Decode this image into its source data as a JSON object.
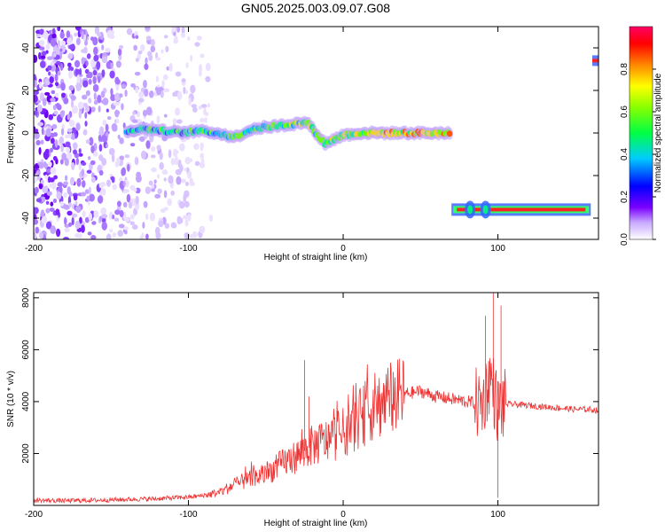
{
  "title": "GN05.2025.003.09.07.G08",
  "chart_data": [
    {
      "type": "heatmap",
      "xlabel": "Height of straight line (km)",
      "ylabel": "Frequency (Hz)",
      "xlim": [
        -200,
        165
      ],
      "ylim": [
        -50,
        50
      ],
      "xticks": [
        "-200",
        "-100",
        "0",
        "100"
      ],
      "yticks": [
        "40",
        "20",
        "0",
        "-20",
        "-40"
      ],
      "colorbar": {
        "label": "Normalized spectral amplitude",
        "range": [
          0,
          1
        ],
        "ticks": [
          "0.0",
          "0.2",
          "0.4",
          "0.6",
          "0.8"
        ],
        "colors": [
          "#ffffff",
          "#7b00ff",
          "#0000ff",
          "#00ffff",
          "#00ff00",
          "#ffff00",
          "#ff8800",
          "#ff0000",
          "#ff0066"
        ]
      },
      "traces": [
        {
          "x_range": [
            -140,
            70
          ],
          "freq": [
            1,
            2,
            1,
            0,
            1,
            0,
            -2,
            2,
            3,
            4,
            5,
            -5,
            -1,
            0,
            0,
            0,
            0,
            0,
            0
          ],
          "strength": "increasing"
        },
        {
          "x_range": [
            70,
            160
          ],
          "freq": -36,
          "strength": "strong"
        },
        {
          "x_range": [
            161,
            165
          ],
          "freq": 34,
          "strength": "strong"
        }
      ],
      "noise_region": {
        "x_range": [
          -200,
          -85
        ],
        "freq_range": [
          -50,
          50
        ]
      }
    },
    {
      "type": "line",
      "xlabel": "Height of straight line (km)",
      "ylabel": "SNR (10 * v/v)",
      "xlim": [
        -200,
        165
      ],
      "ylim": [
        0,
        8200
      ],
      "xticks": [
        "-200",
        "-100",
        "0",
        "100"
      ],
      "yticks": [
        "8000",
        "6000",
        "4000",
        "2000"
      ],
      "color": "#ee3333",
      "x": [
        -200,
        -180,
        -160,
        -140,
        -120,
        -100,
        -90,
        -80,
        -70,
        -60,
        -50,
        -40,
        -30,
        -20,
        -10,
        0,
        10,
        20,
        30,
        40,
        50,
        60,
        70,
        80,
        90,
        95,
        100,
        105,
        110,
        120,
        130,
        140,
        150,
        160,
        165
      ],
      "y": [
        200,
        180,
        200,
        230,
        260,
        320,
        380,
        500,
        800,
        1000,
        1200,
        1600,
        1900,
        2300,
        2500,
        2800,
        3300,
        3800,
        4100,
        4300,
        4400,
        4200,
        4100,
        4000,
        3900,
        5000,
        3700,
        3900,
        3900,
        3850,
        3800,
        3750,
        3700,
        3700,
        3650
      ],
      "spikes": [
        {
          "x": -25,
          "y": 5600
        },
        {
          "x": -22,
          "y": 4200
        },
        {
          "x": 92,
          "y": 7300
        },
        {
          "x": 97,
          "y": 8200
        },
        {
          "x": 100,
          "y": 300
        },
        {
          "x": 102,
          "y": 7700
        }
      ]
    }
  ]
}
